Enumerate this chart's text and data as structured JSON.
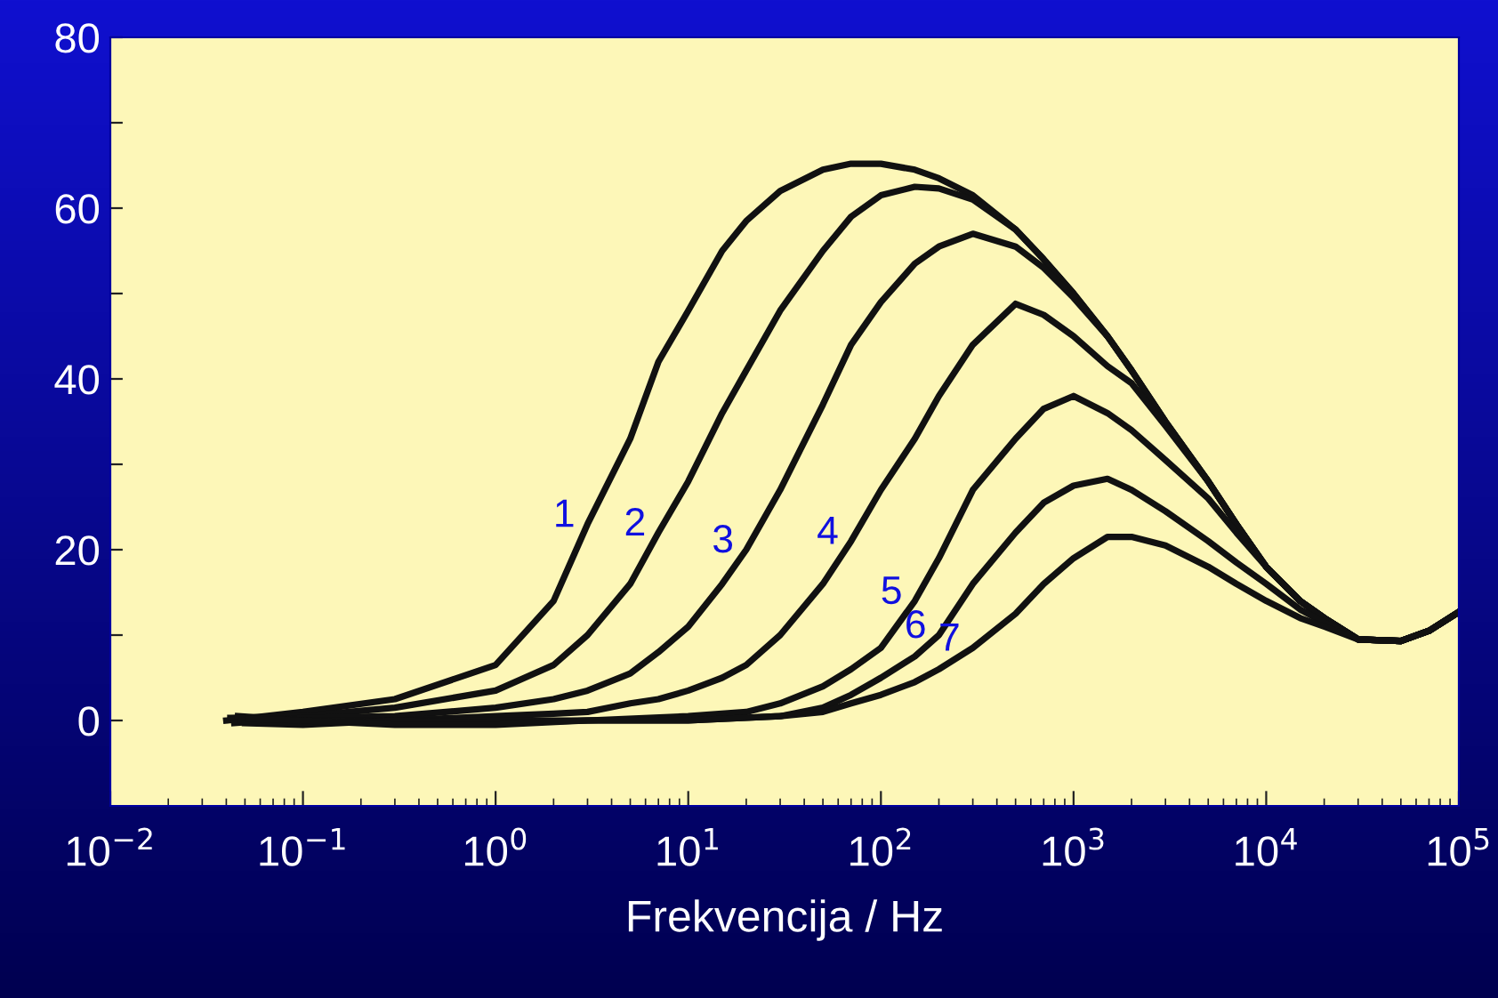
{
  "chart_data": {
    "type": "line",
    "xlabel": "Frekvencija / Hz",
    "log": "x",
    "grid": false,
    "marker": "none",
    "line_style": "solid",
    "xlim": [
      0.01,
      100000
    ],
    "xticks": [
      {
        "value": 0.01,
        "label": "10$^{−2}$"
      },
      {
        "value": 0.1,
        "label": "10$^{−1}$"
      },
      {
        "value": 1,
        "label": "10$^{0}$"
      },
      {
        "value": 10,
        "label": "10$^{1}$"
      },
      {
        "value": 100,
        "label": "10$^{2}$"
      },
      {
        "value": 1000,
        "label": "10$^{3}$"
      },
      {
        "value": 10000,
        "label": "10$^{4}$"
      },
      {
        "value": 100000,
        "label": "10$^{5}$"
      }
    ],
    "ylim": [
      -10,
      80
    ],
    "yticks": [
      0,
      {
        "value": 10,
        "label": null
      },
      20,
      {
        "value": 30,
        "label": null
      },
      40,
      {
        "value": 50,
        "label": null
      },
      60,
      {
        "value": 70,
        "label": null
      },
      80
    ],
    "series": [
      {
        "name": "1",
        "color": "#111111",
        "x": [
          0.04,
          0.1,
          0.3,
          1,
          2,
          3,
          5,
          7,
          10,
          15,
          20,
          30,
          50,
          70,
          100,
          150,
          200,
          300,
          500,
          700,
          1000,
          1500,
          2000,
          3000,
          5000,
          7000,
          10000,
          15000,
          20000,
          30000,
          50000,
          70000,
          100000
        ],
        "values": [
          0,
          1,
          2.5,
          6.5,
          14,
          23,
          33,
          42,
          48,
          55,
          58.5,
          62,
          64.5,
          65.2,
          65.2,
          64.5,
          63.5,
          61.5,
          57.5,
          54,
          50,
          45,
          41,
          35,
          28,
          23,
          18,
          14,
          12,
          9.5,
          9.3,
          10.5,
          12.7
        ]
      },
      {
        "name": "2",
        "color": "#111111",
        "x": [
          0.042,
          0.1,
          0.3,
          1,
          2,
          3,
          5,
          7,
          10,
          15,
          20,
          30,
          50,
          70,
          100,
          150,
          200,
          300,
          500,
          700,
          1000,
          1500,
          2000,
          3000,
          5000,
          7000,
          10000,
          15000,
          20000,
          30000,
          50000,
          70000,
          100000
        ],
        "values": [
          0.3,
          0.5,
          1.5,
          3.5,
          6.5,
          10,
          16,
          22,
          28,
          36,
          41,
          48,
          55,
          59,
          61.5,
          62.5,
          62.3,
          61,
          57.5,
          54,
          50,
          45,
          41,
          35,
          28,
          23,
          18,
          14,
          12,
          9.5,
          9.3,
          10.5,
          12.7
        ]
      },
      {
        "name": "3",
        "color": "#111111",
        "x": [
          0.044,
          0.1,
          0.3,
          1,
          2,
          3,
          5,
          7,
          10,
          15,
          20,
          30,
          50,
          70,
          100,
          150,
          200,
          300,
          500,
          700,
          1000,
          1500,
          2000,
          3000,
          5000,
          7000,
          10000,
          15000,
          20000,
          30000,
          50000,
          70000,
          100000
        ],
        "values": [
          -0.3,
          0.3,
          0.5,
          1.5,
          2.5,
          3.5,
          5.5,
          8,
          11,
          16,
          20,
          27,
          37,
          44,
          49,
          53.5,
          55.5,
          57,
          55.5,
          53,
          49.5,
          45,
          41,
          35,
          28,
          23,
          18,
          14,
          12,
          9.5,
          9.3,
          10.5,
          12.7
        ]
      },
      {
        "name": "4",
        "color": "#111111",
        "x": [
          0.046,
          0.1,
          0.3,
          1,
          2,
          3,
          5,
          7,
          10,
          15,
          20,
          30,
          50,
          70,
          100,
          150,
          200,
          300,
          500,
          700,
          1000,
          1500,
          2000,
          3000,
          5000,
          7000,
          10000,
          15000,
          20000,
          30000,
          50000,
          70000,
          100000
        ],
        "values": [
          0.5,
          0,
          0,
          0.5,
          0.8,
          1,
          2,
          2.5,
          3.5,
          5,
          6.5,
          10,
          16,
          21,
          27,
          33,
          38,
          44,
          48.8,
          47.5,
          45,
          41.5,
          39.5,
          34.5,
          28,
          23,
          18,
          14,
          12,
          9.5,
          9.3,
          10.5,
          12.7
        ]
      },
      {
        "name": "5",
        "color": "#111111",
        "x": [
          0.048,
          0.1,
          0.3,
          1,
          3,
          10,
          20,
          30,
          50,
          70,
          100,
          150,
          200,
          300,
          500,
          700,
          1000,
          1500,
          2000,
          3000,
          5000,
          7000,
          10000,
          15000,
          20000,
          30000,
          50000,
          70000,
          100000
        ],
        "values": [
          0,
          -0.3,
          0,
          0,
          0,
          0.5,
          1,
          2,
          4,
          6,
          8.5,
          14,
          19,
          27,
          33,
          36.5,
          38,
          36,
          34,
          30.5,
          26,
          22,
          18,
          14,
          12,
          9.5,
          9.3,
          10.5,
          12.7
        ]
      },
      {
        "name": "6",
        "color": "#111111",
        "x": [
          0.05,
          0.1,
          0.3,
          1,
          3,
          10,
          30,
          50,
          70,
          100,
          150,
          200,
          300,
          500,
          700,
          1000,
          1500,
          2000,
          3000,
          5000,
          7000,
          10000,
          15000,
          20000,
          30000,
          50000,
          70000,
          100000
        ],
        "values": [
          -0.3,
          -0.5,
          0,
          -0.3,
          0,
          0,
          0.5,
          1.5,
          3,
          5,
          7.5,
          10,
          16,
          22,
          25.5,
          27.5,
          28.3,
          27,
          24.5,
          21,
          18.5,
          16,
          13,
          11.5,
          9.5,
          9.3,
          10.5,
          12.7
        ]
      },
      {
        "name": "7",
        "color": "#111111",
        "x": [
          0.052,
          0.1,
          0.3,
          1,
          3,
          10,
          30,
          50,
          70,
          100,
          150,
          200,
          300,
          500,
          700,
          1000,
          1500,
          2000,
          3000,
          5000,
          7000,
          10000,
          15000,
          20000,
          30000,
          50000,
          70000,
          100000
        ],
        "values": [
          0.2,
          0,
          -0.5,
          -0.5,
          0,
          0,
          0.5,
          1,
          2,
          3,
          4.5,
          6,
          8.5,
          12.5,
          16,
          19,
          21.5,
          21.5,
          20.5,
          18,
          16,
          14,
          12,
          11,
          9.5,
          9.3,
          10.5,
          12.7
        ]
      }
    ]
  }
}
